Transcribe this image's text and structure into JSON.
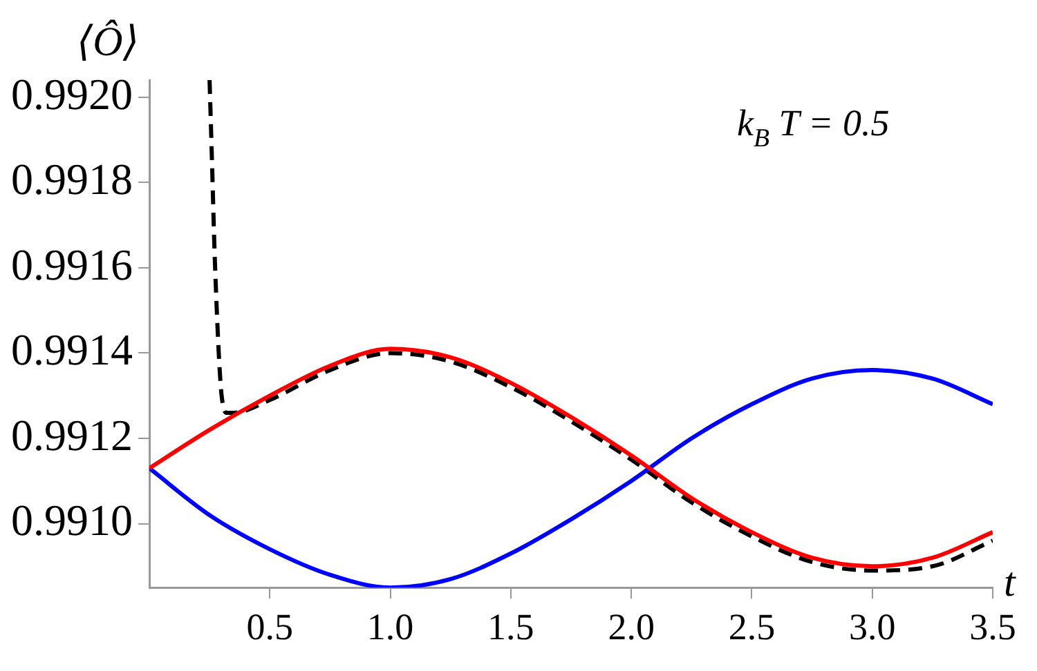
{
  "chart_data": {
    "type": "line",
    "ylabel": "⟨Ô⟩",
    "xlabel": "t",
    "annotations": [
      "k$_{B}$ T = 0.5"
    ],
    "xlim": [
      0,
      3.5
    ],
    "ylim": [
      0.99085,
      0.99204
    ],
    "xticks": [
      0.5,
      {
        "value": 1,
        "label": "1.0"
      },
      1.5,
      {
        "value": 2,
        "label": "2.0"
      },
      2.5,
      {
        "value": 3,
        "label": "3.0"
      },
      3.5
    ],
    "yticks": [
      {
        "value": 0.991,
        "label": "0.9910"
      },
      0.9912,
      0.9914,
      0.9916,
      0.9918,
      {
        "value": 0.992,
        "label": "0.9920"
      }
    ],
    "grid": false,
    "legend": false,
    "marker": "none",
    "series": [
      {
        "color": "#ff0000",
        "line_style": "solid",
        "x": [
          0,
          0.25,
          0.5,
          0.75,
          1,
          1.25,
          1.5,
          1.75,
          2,
          2.25,
          2.5,
          2.75,
          3,
          3.25,
          3.5
        ],
        "values": [
          0.99113,
          0.99122,
          0.9913,
          0.99137,
          0.99141,
          0.99139,
          0.99133,
          0.99125,
          0.99116,
          0.99106,
          0.99098,
          0.99092,
          0.9909,
          0.99092,
          0.99098
        ]
      },
      {
        "color": "#0000ff",
        "line_style": "solid",
        "x": [
          0,
          0.25,
          0.5,
          0.75,
          1,
          1.25,
          1.5,
          1.75,
          2,
          2.25,
          2.5,
          2.75,
          3,
          3.25,
          3.5
        ],
        "values": [
          0.99113,
          0.99102,
          0.99094,
          0.99088,
          0.99085,
          0.99087,
          0.99093,
          0.99101,
          0.9911,
          0.9912,
          0.99128,
          0.99134,
          0.99136,
          0.99134,
          0.99128
        ]
      },
      {
        "color": "#000000",
        "line_style": "dashed",
        "x": [
          0.25,
          0.26,
          0.27,
          0.28,
          0.29,
          0.3,
          0.32,
          0.35,
          0.5,
          0.75,
          1,
          1.25,
          1.5,
          1.75,
          2,
          2.25,
          2.5,
          2.75,
          3,
          3.25,
          3.5
        ],
        "values": [
          0.99204,
          0.99185,
          0.99165,
          0.9915,
          0.99138,
          0.9913,
          0.99126,
          0.99126,
          0.99129,
          0.99136,
          0.9914,
          0.99138,
          0.99132,
          0.99124,
          0.99115,
          0.99105,
          0.99097,
          0.99091,
          0.99089,
          0.9909,
          0.99096
        ]
      }
    ]
  }
}
